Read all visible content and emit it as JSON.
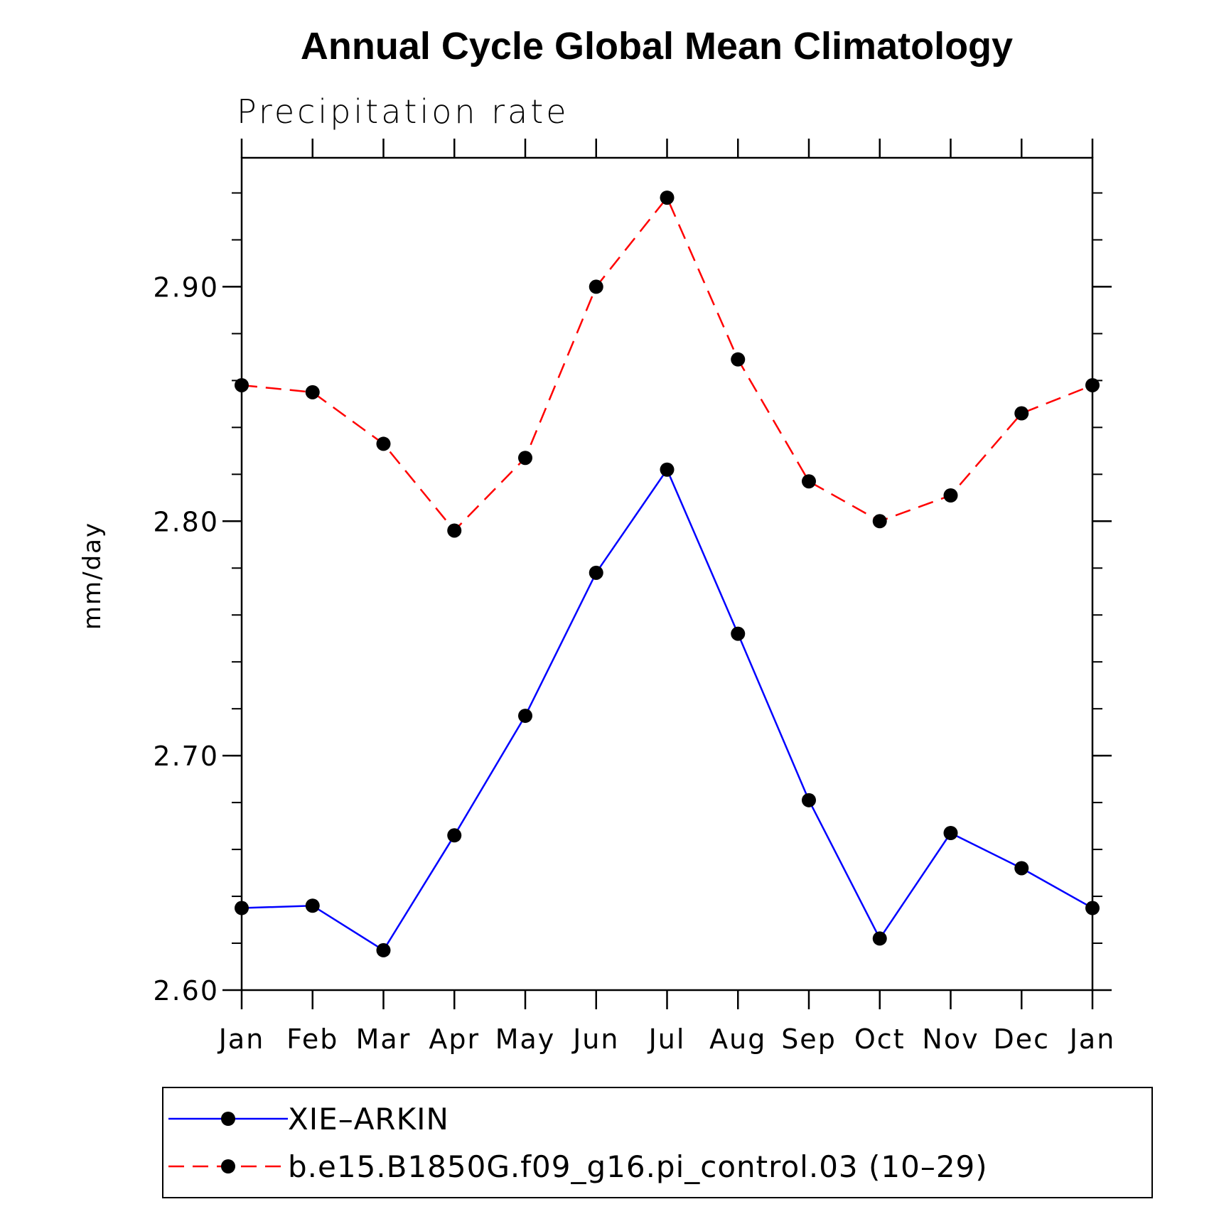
{
  "chart_data": {
    "type": "line",
    "title": "Annual Cycle Global Mean Climatology",
    "subtitle": "Precipitation rate",
    "xlabel": "",
    "ylabel": "mm/day",
    "categories": [
      "Jan",
      "Feb",
      "Mar",
      "Apr",
      "May",
      "Jun",
      "Jul",
      "Aug",
      "Sep",
      "Oct",
      "Nov",
      "Dec",
      "Jan"
    ],
    "ylim": [
      2.6,
      2.955
    ],
    "yticks_major": [
      2.6,
      2.7,
      2.8,
      2.9
    ],
    "ytick_labels": [
      "2.60",
      "2.70",
      "2.80",
      "2.90"
    ],
    "yticks_minor_step": 0.02,
    "grid": false,
    "legend_position": "bottom",
    "series": [
      {
        "name": "XIE–ARKIN",
        "color": "#0000ff",
        "dash": "solid",
        "marker": "filled-circle",
        "values": [
          2.635,
          2.636,
          2.617,
          2.666,
          2.717,
          2.778,
          2.822,
          2.752,
          2.681,
          2.622,
          2.667,
          2.652,
          2.635
        ]
      },
      {
        "name": "b.e15.B1850G.f09_g16.pi_control.03 (10–29)",
        "color": "#ff0000",
        "dash": "dashed",
        "marker": "filled-circle",
        "values": [
          2.858,
          2.855,
          2.833,
          2.796,
          2.827,
          2.9,
          2.938,
          2.869,
          2.817,
          2.8,
          2.811,
          2.846,
          2.858
        ]
      }
    ]
  }
}
